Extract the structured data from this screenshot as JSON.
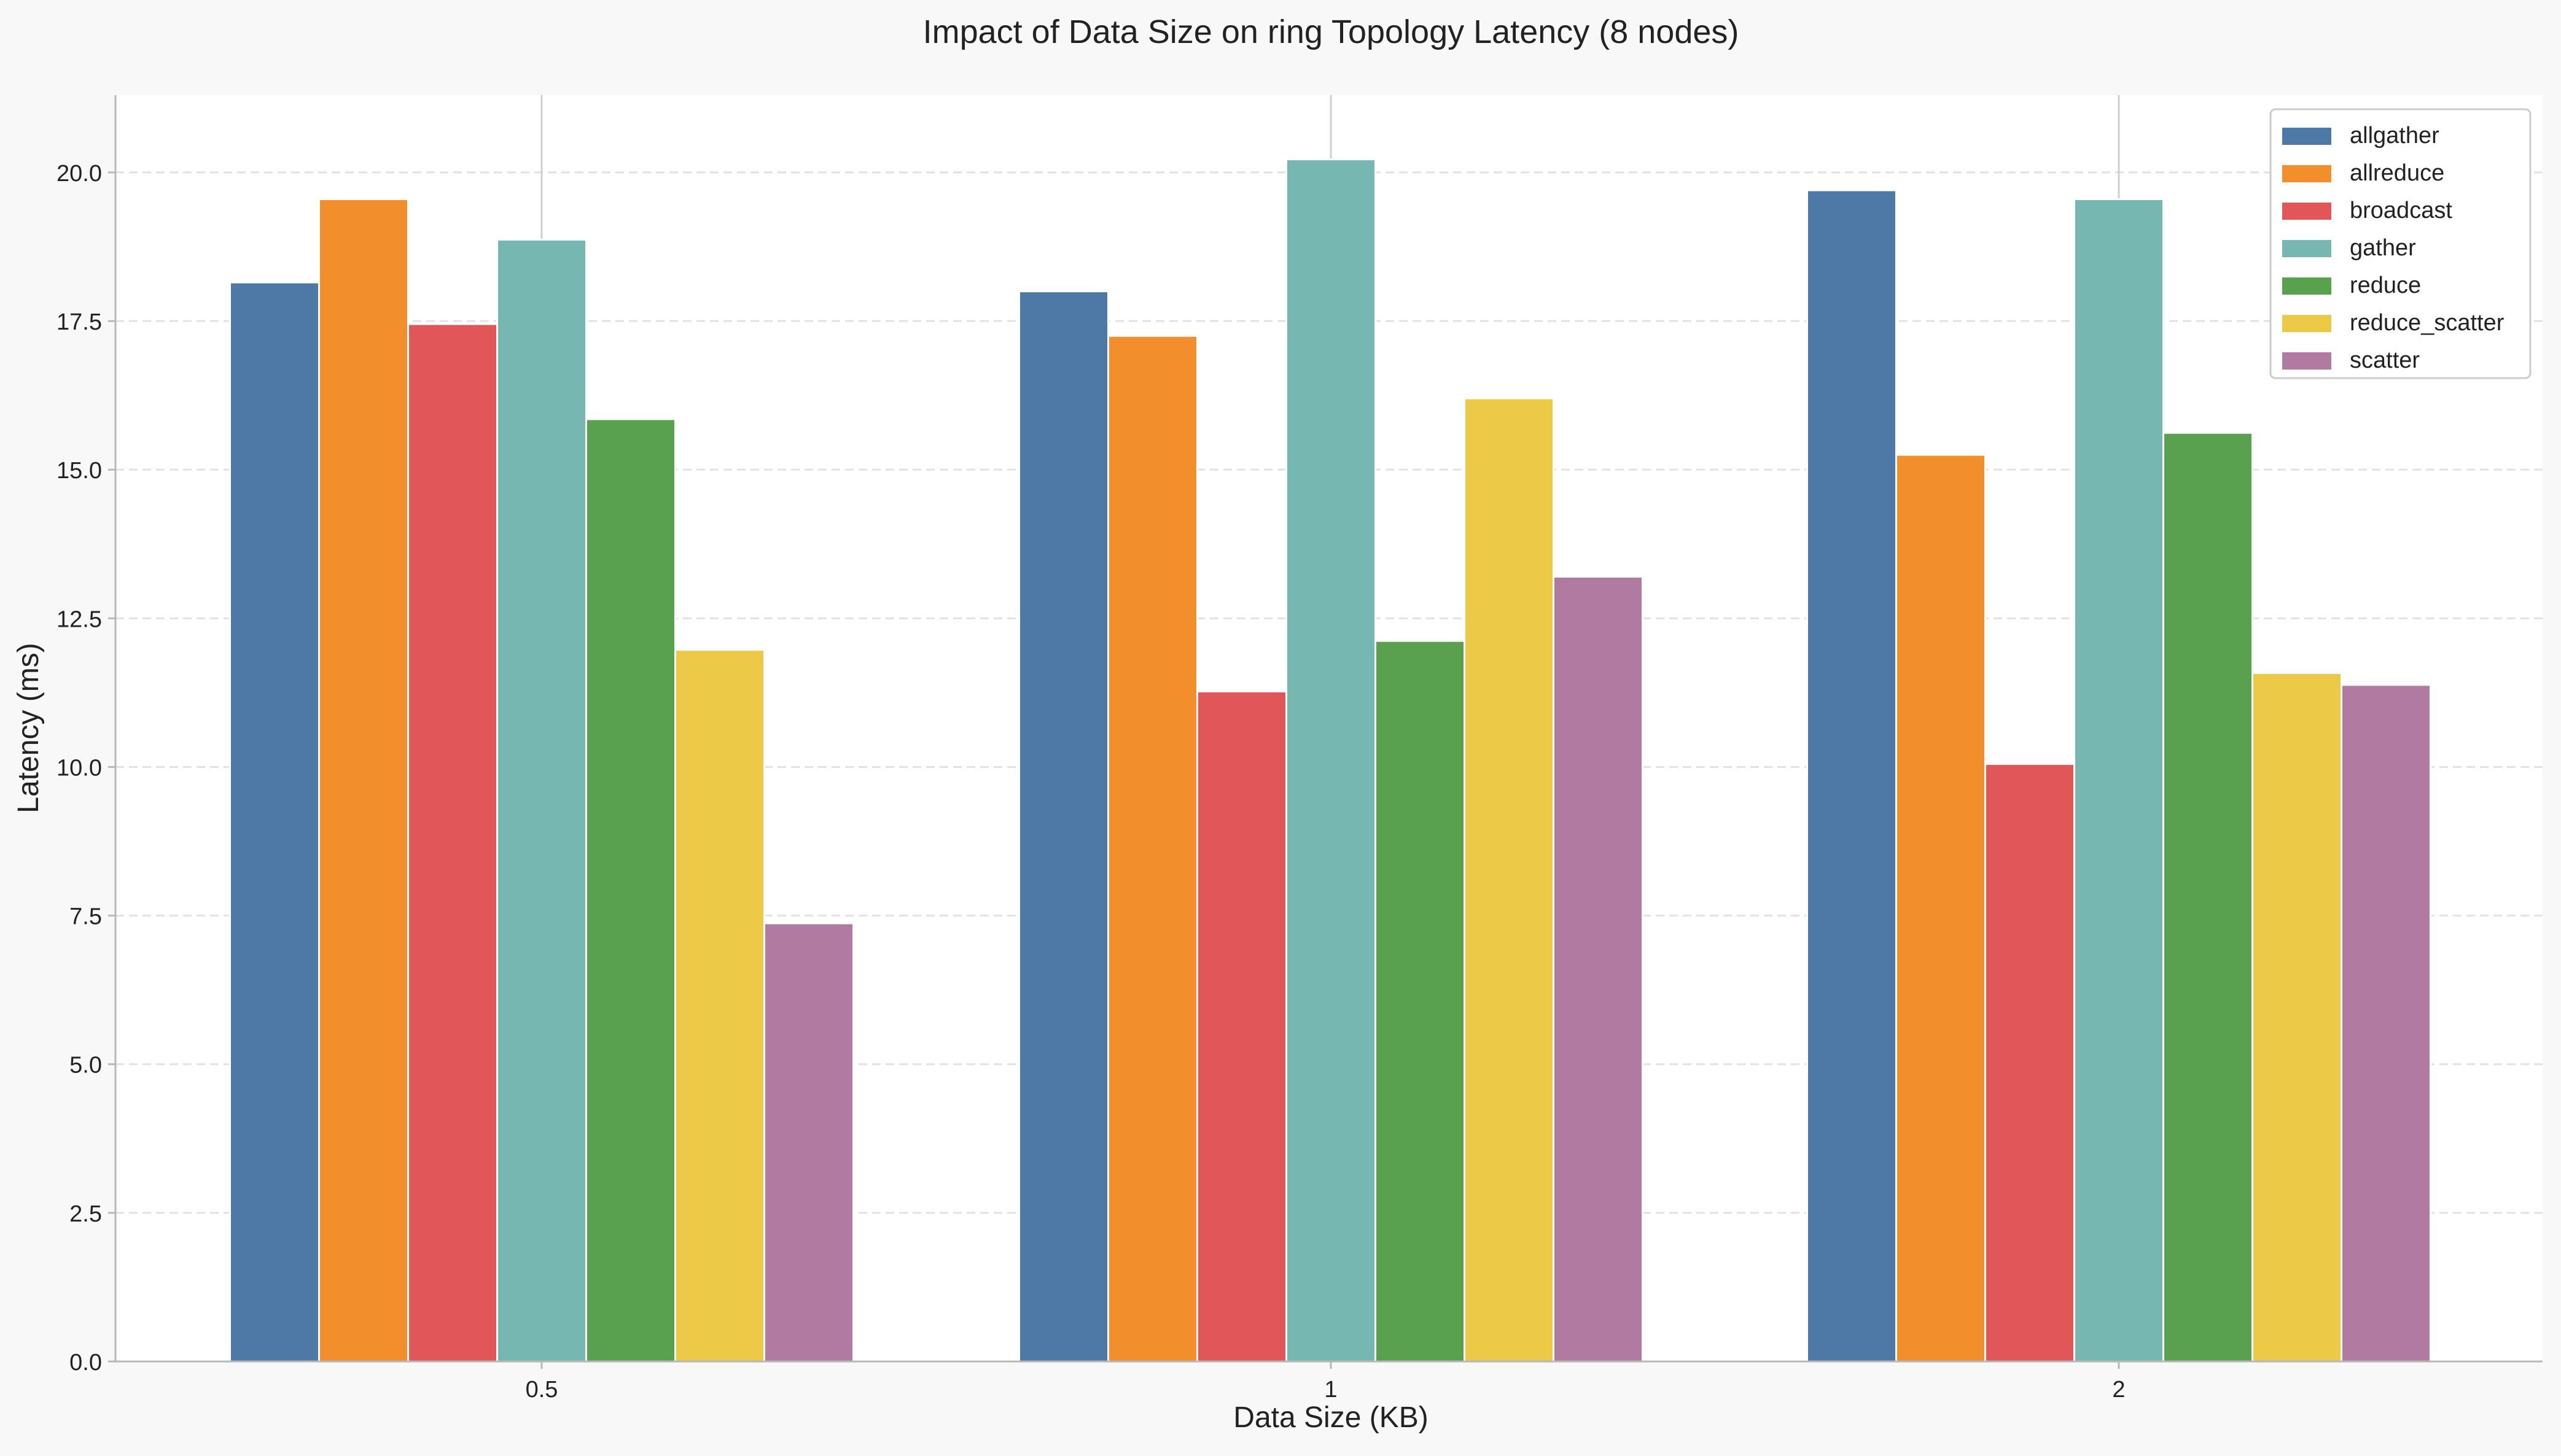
{
  "chart_data": {
    "type": "bar",
    "title": "Impact of Data Size on ring Topology Latency (8 nodes)",
    "xlabel": "Data Size (KB)",
    "ylabel": "Latency (ms)",
    "categories": [
      "0.5",
      "1",
      "2"
    ],
    "ylim": [
      0,
      21.3
    ],
    "yticks": [
      0.0,
      2.5,
      5.0,
      7.5,
      10.0,
      12.5,
      15.0,
      17.5,
      20.0
    ],
    "ytick_labels": [
      "0.0",
      "2.5",
      "5.0",
      "7.5",
      "10.0",
      "12.5",
      "15.0",
      "17.5",
      "20.0"
    ],
    "grid": "y-dashed",
    "legend_position": "top-right",
    "series": [
      {
        "name": "allgather",
        "color": "#4e79a7",
        "values": [
          18.15,
          18.0,
          19.7
        ]
      },
      {
        "name": "allreduce",
        "color": "#f28e2b",
        "values": [
          19.55,
          17.25,
          15.25
        ]
      },
      {
        "name": "broadcast",
        "color": "#e15759",
        "values": [
          17.45,
          11.27,
          10.05
        ]
      },
      {
        "name": "gather",
        "color": "#76b7b2",
        "values": [
          18.87,
          20.22,
          19.55
        ]
      },
      {
        "name": "reduce",
        "color": "#59a14f",
        "values": [
          15.85,
          12.12,
          15.62
        ]
      },
      {
        "name": "reduce_scatter",
        "color": "#edc948",
        "values": [
          11.97,
          16.2,
          11.58
        ]
      },
      {
        "name": "scatter",
        "color": "#b07aa1",
        "values": [
          7.37,
          13.2,
          11.38
        ]
      }
    ]
  }
}
